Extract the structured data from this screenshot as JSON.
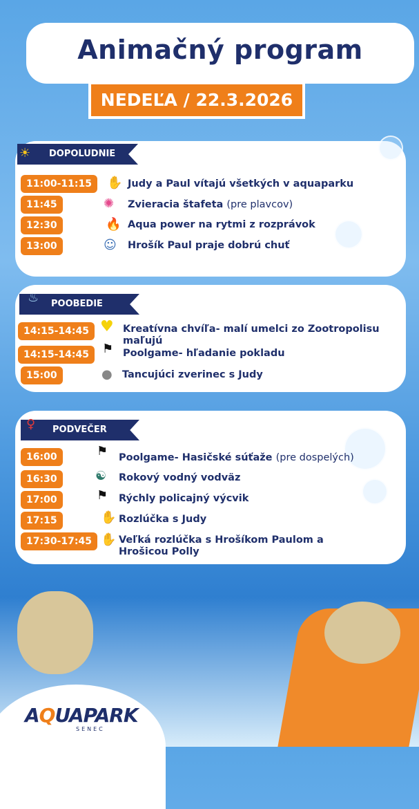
{
  "header": {
    "title": "Animačný program",
    "date": "NEDEĽA / 22.3.2026"
  },
  "sections": [
    {
      "label": "DOPOLUDNIE",
      "icon": "sun-icon",
      "items": [
        {
          "time": "11:00-11:15",
          "icon": "hand-icon",
          "text": "Judy a Paul vítajú všetkých v aquaparku",
          "note": ""
        },
        {
          "time": "11:45",
          "icon": "splash-icon",
          "text": "Zvieracia štafeta",
          "note": "(pre plavcov)"
        },
        {
          "time": "12:30",
          "icon": "fire-icon",
          "text": "Aqua power na rytmi z rozprávok",
          "note": ""
        },
        {
          "time": "13:00",
          "icon": "mascot-icon",
          "text": "Hrošík Paul praje dobrú chuť",
          "note": ""
        }
      ]
    },
    {
      "label": "POOBEDIE",
      "icon": "water-splash-icon",
      "items": [
        {
          "time": "14:15-14:45",
          "icon": "heart-icon",
          "text": "Kreatívna chvíľa- malí umelci zo Zootropolisu maľujú",
          "note": ""
        },
        {
          "time": "14:15-14:45",
          "icon": "checkered-flag-icon",
          "text": "Poolgame- hľadanie pokladu",
          "note": ""
        },
        {
          "time": "15:00",
          "icon": "disco-ball-icon",
          "text": "Tancujúci zverinec s Judy",
          "note": ""
        }
      ]
    },
    {
      "label": "PODVEČER",
      "icon": "swimmer-icon",
      "items": [
        {
          "time": "16:00",
          "icon": "checkered-flag-icon",
          "text": "Poolgame- Hasičské súťaže",
          "note": "(pre dospelých)"
        },
        {
          "time": "16:30",
          "icon": "yoga-icon",
          "text": "Rokový vodný vodväz",
          "note": ""
        },
        {
          "time": "17:00",
          "icon": "checkered-flag-icon",
          "text": "Rýchly policajný výcvik",
          "note": ""
        },
        {
          "time": "17:15",
          "icon": "hand-icon",
          "text": "Rozlúčka s Judy",
          "note": ""
        },
        {
          "time": "17:30-17:45",
          "icon": "hand-icon",
          "text": "Veľká rozlúčka s Hrošíkom Paulom a Hrošicou Polly",
          "note": ""
        }
      ]
    }
  ],
  "logo": {
    "brand": "AQUAPARK",
    "sub": "SENEC"
  },
  "colors": {
    "navy": "#1f2f6b",
    "orange": "#ef7f1a"
  }
}
